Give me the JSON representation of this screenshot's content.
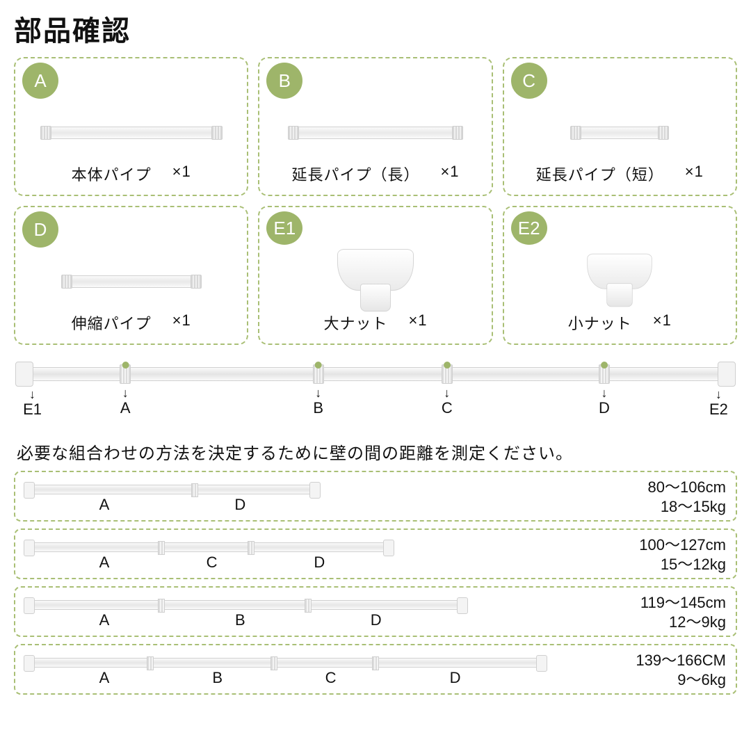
{
  "colors": {
    "border_dash": "#a9bf75",
    "badge_bg": "#9eb56a",
    "marker_dot": "#9eb56a",
    "text": "#111111",
    "bg": "#ffffff"
  },
  "title": "部品確認",
  "parts": [
    {
      "id": "A",
      "name": "本体パイプ",
      "qty": "×1",
      "illus": "pipe",
      "pipe_w": 260
    },
    {
      "id": "B",
      "name": "延長パイプ（長）",
      "qty": "×1",
      "illus": "pipe",
      "pipe_w": 250
    },
    {
      "id": "C",
      "name": "延長パイプ（短）",
      "qty": "×1",
      "illus": "pipe",
      "pipe_w": 140
    },
    {
      "id": "D",
      "name": "伸縮パイプ",
      "qty": "×1",
      "illus": "pipe",
      "pipe_w": 200
    },
    {
      "id": "E1",
      "name": "大ナット",
      "qty": "×1",
      "illus": "nut",
      "nut_scale": 1.0
    },
    {
      "id": "E2",
      "name": "小ナット",
      "qty": "×1",
      "illus": "nut",
      "nut_scale": 0.85
    }
  ],
  "assembled_rod": {
    "markers": [
      {
        "label": "E1",
        "pos_pct": 2,
        "dot": false
      },
      {
        "label": "A",
        "pos_pct": 15,
        "dot": true
      },
      {
        "label": "B",
        "pos_pct": 42,
        "dot": true
      },
      {
        "label": "C",
        "pos_pct": 60,
        "dot": true
      },
      {
        "label": "D",
        "pos_pct": 82,
        "dot": true
      },
      {
        "label": "E2",
        "pos_pct": 98,
        "dot": false
      }
    ],
    "joints_pct": [
      15,
      42,
      60,
      82
    ]
  },
  "note": "必要な組合わせの方法を決定するために壁の間の距離を測定ください。",
  "combos": [
    {
      "bar_pct": 52,
      "joints_pct": [
        30
      ],
      "labels": [
        {
          "text": "A",
          "pos_pct": 14
        },
        {
          "text": "D",
          "pos_pct": 38
        }
      ],
      "range": "80～106cm",
      "load": "18～15kg"
    },
    {
      "bar_pct": 65,
      "joints_pct": [
        24,
        40
      ],
      "labels": [
        {
          "text": "A",
          "pos_pct": 14
        },
        {
          "text": "C",
          "pos_pct": 33
        },
        {
          "text": "D",
          "pos_pct": 52
        }
      ],
      "range": "100～127cm",
      "load": "15～12kg"
    },
    {
      "bar_pct": 78,
      "joints_pct": [
        24,
        50
      ],
      "labels": [
        {
          "text": "A",
          "pos_pct": 14
        },
        {
          "text": "B",
          "pos_pct": 38
        },
        {
          "text": "D",
          "pos_pct": 62
        }
      ],
      "range": "119～145cm",
      "load": "12～9kg"
    },
    {
      "bar_pct": 92,
      "joints_pct": [
        22,
        44,
        62
      ],
      "labels": [
        {
          "text": "A",
          "pos_pct": 14
        },
        {
          "text": "B",
          "pos_pct": 34
        },
        {
          "text": "C",
          "pos_pct": 54
        },
        {
          "text": "D",
          "pos_pct": 76
        }
      ],
      "range": "139～166CM",
      "load": "9～6kg"
    }
  ]
}
